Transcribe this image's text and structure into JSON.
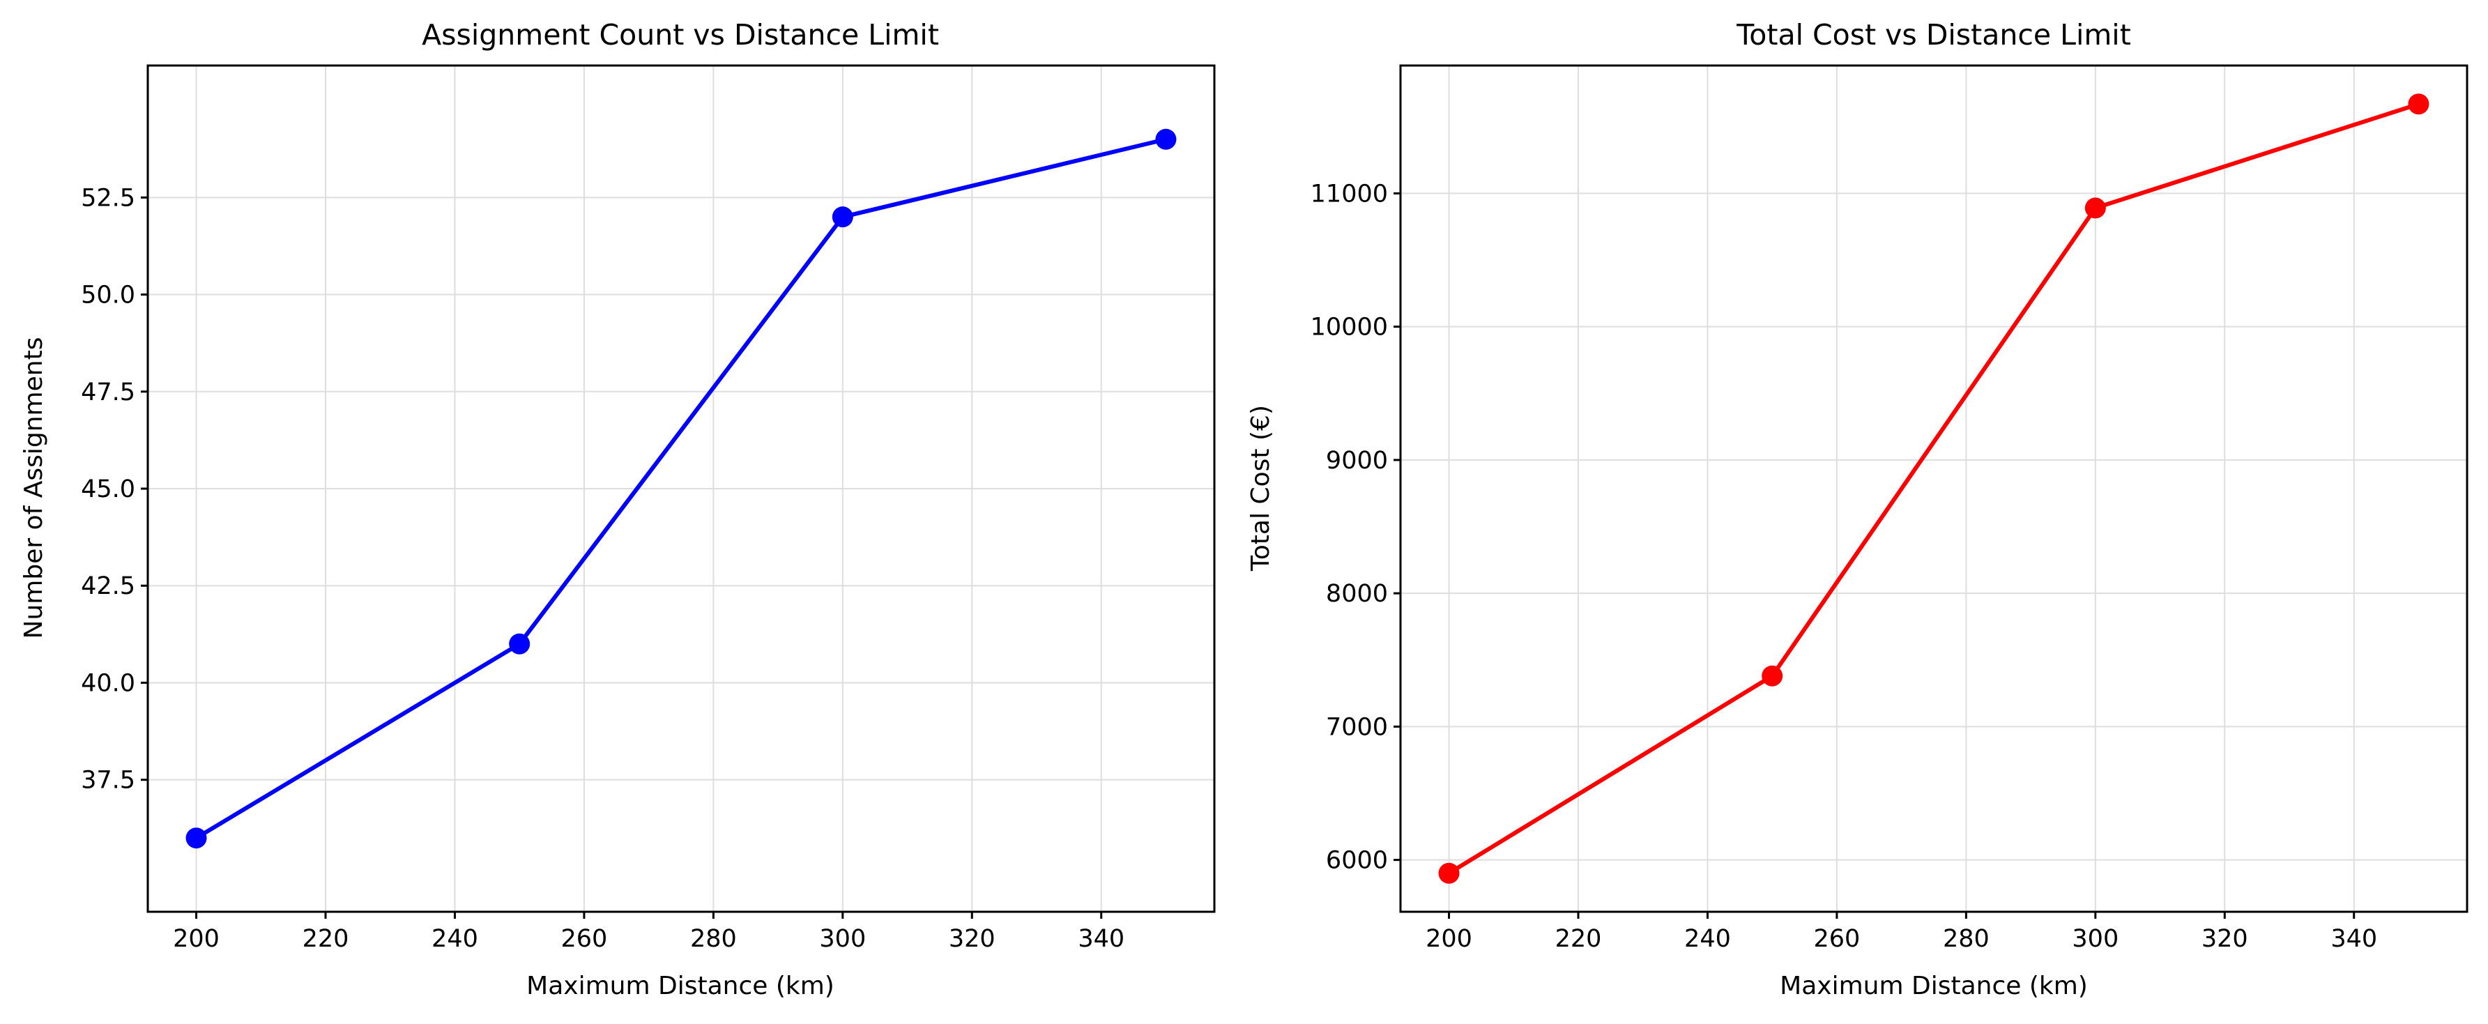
{
  "chart_data": [
    {
      "type": "line",
      "title": "Assignment Count vs Distance Limit",
      "xlabel": "Maximum Distance (km)",
      "ylabel": "Number of Assignments",
      "x": [
        200,
        250,
        300,
        350
      ],
      "series": [
        {
          "values": [
            36,
            41,
            52,
            54
          ],
          "color": "#0000ff"
        }
      ],
      "xlim": [
        192.5,
        357.5
      ],
      "ylim": [
        34.1,
        55.9
      ],
      "xticks": [
        200,
        220,
        240,
        260,
        280,
        300,
        320,
        340
      ],
      "xtick_labels": [
        "200",
        "220",
        "240",
        "260",
        "280",
        "300",
        "320",
        "340"
      ],
      "yticks": [
        37.5,
        40.0,
        42.5,
        45.0,
        47.5,
        50.0,
        52.5
      ],
      "ytick_labels": [
        "37.5",
        "40.0",
        "42.5",
        "45.0",
        "47.5",
        "50.0",
        "52.5"
      ],
      "grid": true,
      "marker": "circle"
    },
    {
      "type": "line",
      "title": "Total Cost vs Distance Limit",
      "xlabel": "Maximum Distance (km)",
      "ylabel": "Total Cost (€)",
      "x": [
        200,
        250,
        300,
        350
      ],
      "series": [
        {
          "values": [
            5900,
            7380,
            10890,
            11670
          ],
          "color": "#ff0000"
        }
      ],
      "xlim": [
        192.5,
        357.5
      ],
      "ylim": [
        5611,
        11959
      ],
      "xticks": [
        200,
        220,
        240,
        260,
        280,
        300,
        320,
        340
      ],
      "xtick_labels": [
        "200",
        "220",
        "240",
        "260",
        "280",
        "300",
        "320",
        "340"
      ],
      "yticks": [
        6000,
        7000,
        8000,
        9000,
        10000,
        11000
      ],
      "ytick_labels": [
        "6000",
        "7000",
        "8000",
        "9000",
        "10000",
        "11000"
      ],
      "grid": true,
      "marker": "circle"
    }
  ]
}
